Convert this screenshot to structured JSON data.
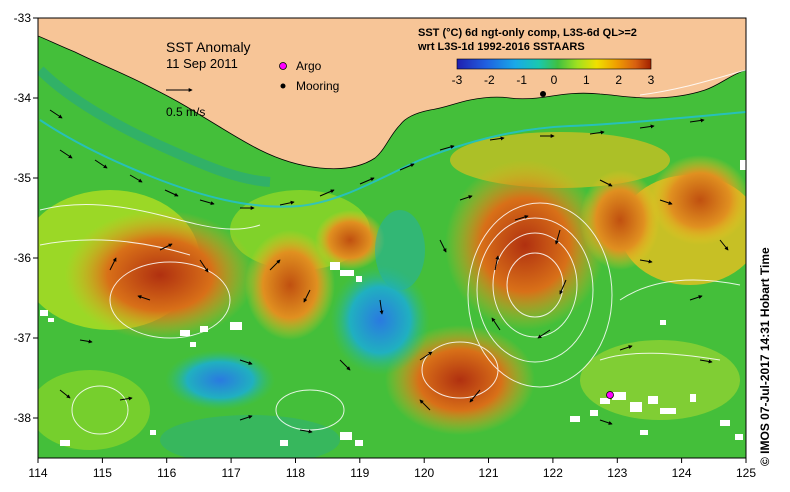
{
  "map": {
    "title": "SST Anomaly",
    "date": "11 Sep 2011",
    "vector_scale_label": "0.5 m/s",
    "legend_argo": "Argo",
    "legend_mooring": "Mooring",
    "colorbar_line1": "SST (°C) 6d ngt-only comp, L3S-6d QL>=2",
    "colorbar_line2": "wrt L3S-1d 1992-2016 SSTAARS",
    "colorbar_ticks": [
      "-3",
      "-2",
      "-1",
      "0",
      "1",
      "2",
      "3"
    ],
    "colorbar_colors": [
      "#1f1fb0",
      "#2060e0",
      "#19a9e8",
      "#19c8b0",
      "#40c040",
      "#a0e020",
      "#f0e000",
      "#f0a000",
      "#d86010",
      "#a02000"
    ],
    "lon_ticks": [
      "114",
      "115",
      "116",
      "117",
      "118",
      "119",
      "120",
      "121",
      "122",
      "123",
      "124",
      "125"
    ],
    "lat_ticks": [
      "-33",
      "-34",
      "-35",
      "-36",
      "-37",
      "-38"
    ],
    "credit": "© IMOS 07-Jul-2017 14:31 Hobart Time",
    "land_color": "#f7c597",
    "argo_color": "#ff00ff"
  }
}
